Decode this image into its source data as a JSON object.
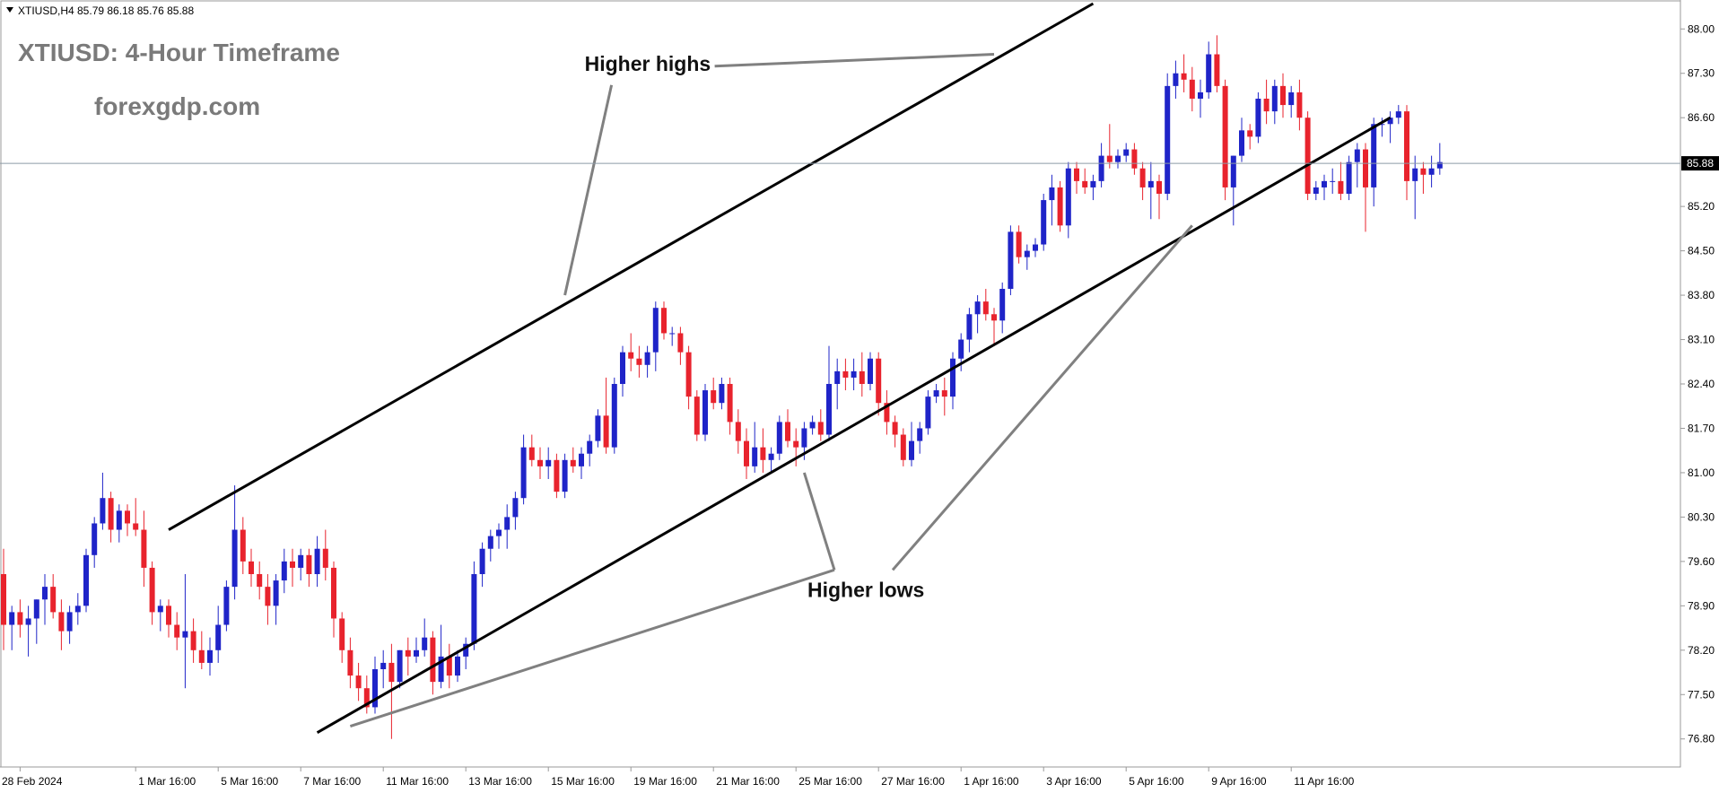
{
  "header": {
    "symbol_info": "XTIUSD,H4  85.79 86.18 85.76 85.88"
  },
  "overlay": {
    "title": "XTIUSD: 4-Hour Timeframe",
    "site": "forexgdp.com",
    "higher_highs": "Higher highs",
    "higher_lows": "Higher lows"
  },
  "price_marker": {
    "value": 85.88,
    "label": "85.88"
  },
  "colors": {
    "bull": "#1f24c8",
    "bear": "#e8232d",
    "channel": "#000000",
    "annotation_line": "#808080",
    "overlay_text": "#7a7a7a",
    "current_line": "#8c9aa6",
    "price_marker_bg": "#000000"
  },
  "chart_data": {
    "type": "candlestick",
    "y_axis": {
      "range": [
        76.4,
        88.4
      ],
      "ticks": [
        88.0,
        87.3,
        86.6,
        85.2,
        84.5,
        83.8,
        83.1,
        82.4,
        81.7,
        81.0,
        80.3,
        79.6,
        78.9,
        78.2,
        77.5,
        76.8
      ],
      "tick_labels": [
        "88.00",
        "87.30",
        "86.60",
        "85.20",
        "84.50",
        "83.80",
        "83.10",
        "82.40",
        "81.70",
        "81.00",
        "80.30",
        "79.60",
        "78.90",
        "78.20",
        "77.50",
        "76.80"
      ]
    },
    "x_axis": {
      "labels": [
        "28 Feb 2024",
        "1 Mar 16:00",
        "5 Mar 16:00",
        "7 Mar 16:00",
        "11 Mar 16:00",
        "13 Mar 16:00",
        "15 Mar 16:00",
        "19 Mar 16:00",
        "21 Mar 16:00",
        "25 Mar 16:00",
        "27 Mar 16:00",
        "1 Apr 16:00",
        "3 Apr 16:00",
        "5 Apr 16:00",
        "9 Apr 16:00",
        "11 Apr 16:00"
      ],
      "label_bar_index": [
        2,
        16,
        26,
        36,
        46,
        56,
        66,
        76,
        86,
        96,
        106,
        116,
        126,
        136,
        146,
        156
      ]
    },
    "candles": [
      [
        79.4,
        79.8,
        78.2,
        78.6
      ],
      [
        78.6,
        78.9,
        78.2,
        78.8
      ],
      [
        78.8,
        79.0,
        78.4,
        78.6
      ],
      [
        78.6,
        78.9,
        78.1,
        78.7
      ],
      [
        78.7,
        79.0,
        78.3,
        79.0
      ],
      [
        79.0,
        79.4,
        78.6,
        79.2
      ],
      [
        79.2,
        79.4,
        78.7,
        78.8
      ],
      [
        78.8,
        79.0,
        78.2,
        78.5
      ],
      [
        78.5,
        78.9,
        78.3,
        78.8
      ],
      [
        78.8,
        79.1,
        78.6,
        78.9
      ],
      [
        78.9,
        79.8,
        78.8,
        79.7
      ],
      [
        79.7,
        80.3,
        79.5,
        80.2
      ],
      [
        80.2,
        81.0,
        80.1,
        80.6
      ],
      [
        80.6,
        80.7,
        79.9,
        80.1
      ],
      [
        80.1,
        80.5,
        79.9,
        80.4
      ],
      [
        80.4,
        80.5,
        80.0,
        80.2
      ],
      [
        80.2,
        80.6,
        80.0,
        80.1
      ],
      [
        80.1,
        80.4,
        79.2,
        79.5
      ],
      [
        79.5,
        79.6,
        78.6,
        78.8
      ],
      [
        78.8,
        79.0,
        78.5,
        78.9
      ],
      [
        78.9,
        79.0,
        78.4,
        78.6
      ],
      [
        78.6,
        78.8,
        78.2,
        78.4
      ],
      [
        78.4,
        79.4,
        77.6,
        78.5
      ],
      [
        78.5,
        78.7,
        78.0,
        78.2
      ],
      [
        78.2,
        78.5,
        77.9,
        78.0
      ],
      [
        78.0,
        78.4,
        77.8,
        78.2
      ],
      [
        78.2,
        78.9,
        78.0,
        78.6
      ],
      [
        78.6,
        79.3,
        78.5,
        79.2
      ],
      [
        79.2,
        80.8,
        79.0,
        80.1
      ],
      [
        80.1,
        80.3,
        79.4,
        79.6
      ],
      [
        79.6,
        79.8,
        79.2,
        79.4
      ],
      [
        79.4,
        79.6,
        79.0,
        79.2
      ],
      [
        79.2,
        79.4,
        78.6,
        78.9
      ],
      [
        78.9,
        79.4,
        78.6,
        79.3
      ],
      [
        79.3,
        79.8,
        79.1,
        79.6
      ],
      [
        79.6,
        79.8,
        79.2,
        79.5
      ],
      [
        79.5,
        79.8,
        79.3,
        79.7
      ],
      [
        79.7,
        79.8,
        79.2,
        79.4
      ],
      [
        79.4,
        80.0,
        79.2,
        79.8
      ],
      [
        79.8,
        80.1,
        79.3,
        79.5
      ],
      [
        79.5,
        79.6,
        78.4,
        78.7
      ],
      [
        78.7,
        78.8,
        78.0,
        78.2
      ],
      [
        78.2,
        78.4,
        77.6,
        77.8
      ],
      [
        77.8,
        78.0,
        77.4,
        77.6
      ],
      [
        77.6,
        77.8,
        77.2,
        77.3
      ],
      [
        77.3,
        78.1,
        77.2,
        77.9
      ],
      [
        77.9,
        78.2,
        77.6,
        78.0
      ],
      [
        78.0,
        78.3,
        76.8,
        77.7
      ],
      [
        77.7,
        78.2,
        77.6,
        78.2
      ],
      [
        78.2,
        78.4,
        77.8,
        78.1
      ],
      [
        78.1,
        78.4,
        78.0,
        78.2
      ],
      [
        78.2,
        78.7,
        78.1,
        78.4
      ],
      [
        78.4,
        78.5,
        77.5,
        77.7
      ],
      [
        77.7,
        78.6,
        77.6,
        78.1
      ],
      [
        78.1,
        78.3,
        77.6,
        77.8
      ],
      [
        77.8,
        78.2,
        77.7,
        78.1
      ],
      [
        78.1,
        78.4,
        77.9,
        78.3
      ],
      [
        78.3,
        79.6,
        78.2,
        79.4
      ],
      [
        79.4,
        79.9,
        79.2,
        79.8
      ],
      [
        79.8,
        80.1,
        79.6,
        80.0
      ],
      [
        80.0,
        80.2,
        79.8,
        80.1
      ],
      [
        80.1,
        80.5,
        79.8,
        80.3
      ],
      [
        80.3,
        80.7,
        80.1,
        80.6
      ],
      [
        80.6,
        81.6,
        80.5,
        81.4
      ],
      [
        81.4,
        81.6,
        81.1,
        81.2
      ],
      [
        81.2,
        81.4,
        80.9,
        81.1
      ],
      [
        81.1,
        81.4,
        80.9,
        81.2
      ],
      [
        81.2,
        81.3,
        80.6,
        80.7
      ],
      [
        80.7,
        81.3,
        80.6,
        81.2
      ],
      [
        81.2,
        81.4,
        81.0,
        81.1
      ],
      [
        81.1,
        81.4,
        80.9,
        81.3
      ],
      [
        81.3,
        81.6,
        81.1,
        81.5
      ],
      [
        81.5,
        82.0,
        81.4,
        81.9
      ],
      [
        81.9,
        82.5,
        81.3,
        81.4
      ],
      [
        81.4,
        82.5,
        81.3,
        82.4
      ],
      [
        82.4,
        83.0,
        82.2,
        82.9
      ],
      [
        82.9,
        83.2,
        82.6,
        82.8
      ],
      [
        82.8,
        83.0,
        82.5,
        82.7
      ],
      [
        82.7,
        83.0,
        82.5,
        82.9
      ],
      [
        82.9,
        83.7,
        82.6,
        83.6
      ],
      [
        83.6,
        83.7,
        83.1,
        83.2
      ],
      [
        83.2,
        83.3,
        83.0,
        83.2
      ],
      [
        83.2,
        83.3,
        82.7,
        82.9
      ],
      [
        82.9,
        83.0,
        82.0,
        82.2
      ],
      [
        82.2,
        82.3,
        81.5,
        81.6
      ],
      [
        81.6,
        82.4,
        81.5,
        82.3
      ],
      [
        82.3,
        82.5,
        82.0,
        82.1
      ],
      [
        82.1,
        82.5,
        82.0,
        82.4
      ],
      [
        82.4,
        82.5,
        81.6,
        81.8
      ],
      [
        81.8,
        82.0,
        81.3,
        81.5
      ],
      [
        81.5,
        81.7,
        80.9,
        81.1
      ],
      [
        81.1,
        81.8,
        81.0,
        81.4
      ],
      [
        81.4,
        81.7,
        81.0,
        81.2
      ],
      [
        81.2,
        81.4,
        81.0,
        81.3
      ],
      [
        81.3,
        81.9,
        81.2,
        81.8
      ],
      [
        81.8,
        82.0,
        81.4,
        81.5
      ],
      [
        81.5,
        81.7,
        81.1,
        81.4
      ],
      [
        81.4,
        81.8,
        81.2,
        81.7
      ],
      [
        81.7,
        81.9,
        81.6,
        81.8
      ],
      [
        81.8,
        82.0,
        81.5,
        81.6
      ],
      [
        81.6,
        83.0,
        81.5,
        82.4
      ],
      [
        82.4,
        82.8,
        82.0,
        82.6
      ],
      [
        82.6,
        82.8,
        82.3,
        82.5
      ],
      [
        82.5,
        82.8,
        82.3,
        82.6
      ],
      [
        82.6,
        82.9,
        82.2,
        82.4
      ],
      [
        82.4,
        82.9,
        82.3,
        82.8
      ],
      [
        82.8,
        82.9,
        81.9,
        82.1
      ],
      [
        82.1,
        82.3,
        81.6,
        81.8
      ],
      [
        81.8,
        81.9,
        81.4,
        81.6
      ],
      [
        81.6,
        81.7,
        81.1,
        81.2
      ],
      [
        81.2,
        81.8,
        81.1,
        81.5
      ],
      [
        81.5,
        81.8,
        81.3,
        81.7
      ],
      [
        81.7,
        82.3,
        81.6,
        82.2
      ],
      [
        82.2,
        82.4,
        82.1,
        82.3
      ],
      [
        82.3,
        82.5,
        81.9,
        82.2
      ],
      [
        82.2,
        82.9,
        82.0,
        82.8
      ],
      [
        82.8,
        83.2,
        82.6,
        83.1
      ],
      [
        83.1,
        83.6,
        82.9,
        83.5
      ],
      [
        83.5,
        83.8,
        83.2,
        83.7
      ],
      [
        83.7,
        83.9,
        83.4,
        83.5
      ],
      [
        83.5,
        83.6,
        83.0,
        83.4
      ],
      [
        83.4,
        84.0,
        83.2,
        83.9
      ],
      [
        83.9,
        84.9,
        83.8,
        84.8
      ],
      [
        84.8,
        84.9,
        84.3,
        84.4
      ],
      [
        84.4,
        84.6,
        84.2,
        84.5
      ],
      [
        84.5,
        84.7,
        84.4,
        84.6
      ],
      [
        84.6,
        85.4,
        84.5,
        85.3
      ],
      [
        85.3,
        85.7,
        84.9,
        85.5
      ],
      [
        85.5,
        85.6,
        84.8,
        84.9
      ],
      [
        84.9,
        85.9,
        84.7,
        85.8
      ],
      [
        85.8,
        85.9,
        85.4,
        85.6
      ],
      [
        85.6,
        85.8,
        85.4,
        85.5
      ],
      [
        85.5,
        85.7,
        85.3,
        85.6
      ],
      [
        85.6,
        86.2,
        85.5,
        86.0
      ],
      [
        86.0,
        86.5,
        85.8,
        85.9
      ],
      [
        85.9,
        86.1,
        85.8,
        86.0
      ],
      [
        86.0,
        86.2,
        85.9,
        86.1
      ],
      [
        86.1,
        86.2,
        85.7,
        85.8
      ],
      [
        85.8,
        85.9,
        85.3,
        85.5
      ],
      [
        85.5,
        85.9,
        85.0,
        85.6
      ],
      [
        85.6,
        85.7,
        85.0,
        85.4
      ],
      [
        85.4,
        87.3,
        85.3,
        87.1
      ],
      [
        87.1,
        87.5,
        86.9,
        87.3
      ],
      [
        87.3,
        87.6,
        87.0,
        87.2
      ],
      [
        87.2,
        87.4,
        86.7,
        86.9
      ],
      [
        86.9,
        87.2,
        86.6,
        87.0
      ],
      [
        87.0,
        87.8,
        86.9,
        87.6
      ],
      [
        87.6,
        87.9,
        87.0,
        87.1
      ],
      [
        87.1,
        87.2,
        85.3,
        85.5
      ],
      [
        85.5,
        86.0,
        84.9,
        86.0
      ],
      [
        86.0,
        86.6,
        85.9,
        86.4
      ],
      [
        86.4,
        86.5,
        86.1,
        86.3
      ],
      [
        86.3,
        87.0,
        86.2,
        86.9
      ],
      [
        86.9,
        87.2,
        86.5,
        86.7
      ],
      [
        86.7,
        87.2,
        86.5,
        87.1
      ],
      [
        87.1,
        87.3,
        86.6,
        86.8
      ],
      [
        86.8,
        87.1,
        86.6,
        87.0
      ],
      [
        87.0,
        87.2,
        86.4,
        86.6
      ],
      [
        86.6,
        86.7,
        85.3,
        85.4
      ],
      [
        85.4,
        85.6,
        85.3,
        85.5
      ],
      [
        85.5,
        85.7,
        85.3,
        85.6
      ],
      [
        85.6,
        85.8,
        85.4,
        85.6
      ],
      [
        85.6,
        85.9,
        85.3,
        85.4
      ],
      [
        85.4,
        86.0,
        85.3,
        85.9
      ],
      [
        85.9,
        86.2,
        85.5,
        86.1
      ],
      [
        86.1,
        86.2,
        84.8,
        85.5
      ],
      [
        85.5,
        86.6,
        85.2,
        86.5
      ],
      [
        86.5,
        86.6,
        86.3,
        86.5
      ],
      [
        86.5,
        86.7,
        86.2,
        86.6
      ],
      [
        86.6,
        86.8,
        86.5,
        86.7
      ],
      [
        86.7,
        86.8,
        85.3,
        85.6
      ],
      [
        85.6,
        86.0,
        85.0,
        85.8
      ],
      [
        85.8,
        85.9,
        85.4,
        85.7
      ],
      [
        85.7,
        86.0,
        85.5,
        85.8
      ],
      [
        85.8,
        86.2,
        85.7,
        85.9
      ]
    ],
    "channel_lines": [
      {
        "name": "upper",
        "from": {
          "bar": 20,
          "price": 80.1
        },
        "to": {
          "bar": 132,
          "price": 88.4
        }
      },
      {
        "name": "lower",
        "from": {
          "bar": 38,
          "price": 76.9
        },
        "to": {
          "bar": 168,
          "price": 86.6
        }
      }
    ],
    "annotations": [
      {
        "label": "higher_highs",
        "text_bar": 78,
        "text_price": 87.2,
        "targets": [
          {
            "bar": 68,
            "price": 83.8
          },
          {
            "bar": 120,
            "price": 87.6
          }
        ]
      },
      {
        "label": "higher_lows",
        "text_bar": 105,
        "text_price": 78.9,
        "targets": [
          {
            "bar": 42,
            "price": 77.0
          },
          {
            "bar": 97,
            "price": 81.0
          },
          {
            "bar": 144,
            "price": 84.9
          }
        ]
      }
    ]
  }
}
